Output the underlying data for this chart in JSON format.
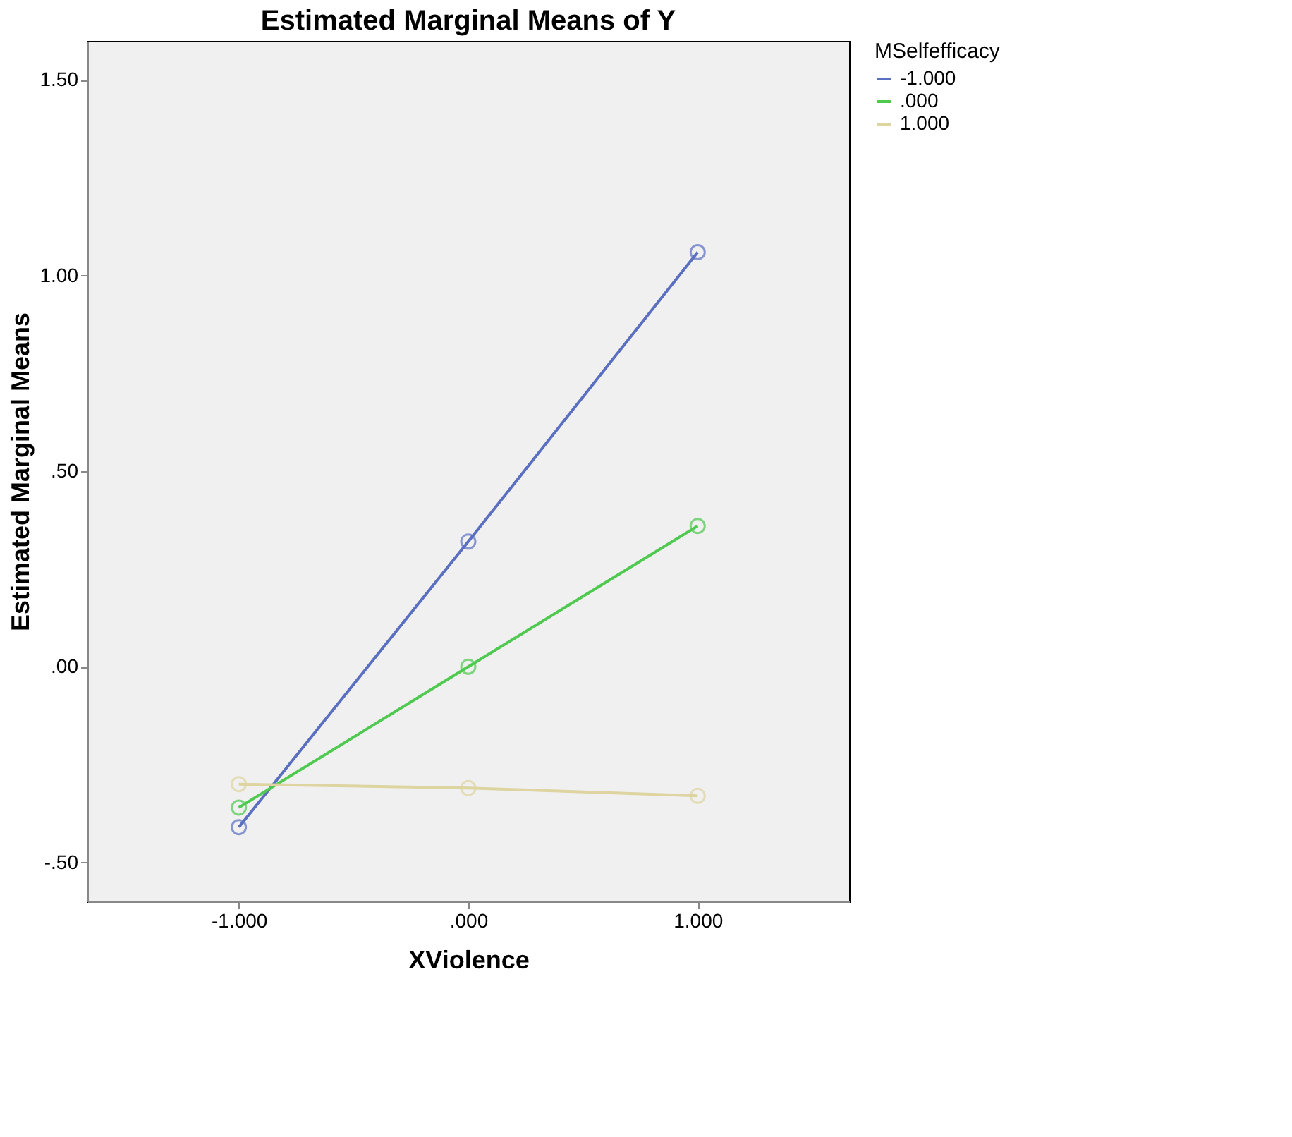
{
  "chart_data": {
    "type": "line",
    "title": "Estimated Marginal Means of Y",
    "xlabel": "XViolence",
    "ylabel": "Estimated Marginal Means",
    "legend_title": "MSelfefficacy",
    "categories": [
      "-1.000",
      ".000",
      "1.000"
    ],
    "series": [
      {
        "name": "-1.000",
        "color": "#5a6fc0",
        "values": [
          -0.41,
          0.32,
          1.06
        ]
      },
      {
        "name": ".000",
        "color": "#4fc94f",
        "values": [
          -0.36,
          0.0,
          0.36
        ]
      },
      {
        "name": "1.000",
        "color": "#ddd4a0",
        "values": [
          -0.3,
          -0.31,
          -0.33
        ]
      }
    ],
    "ylim": [
      -0.6,
      1.6
    ],
    "yticks": [
      {
        "value": -0.5,
        "label": "-.50"
      },
      {
        "value": 0,
        "label": ".00"
      },
      {
        "value": 0.5,
        "label": ".50"
      },
      {
        "value": 1.0,
        "label": "1.00"
      },
      {
        "value": 1.5,
        "label": "1.50"
      }
    ],
    "grid": false,
    "legend": "top right",
    "marker": "circle",
    "line_style": "solid"
  }
}
